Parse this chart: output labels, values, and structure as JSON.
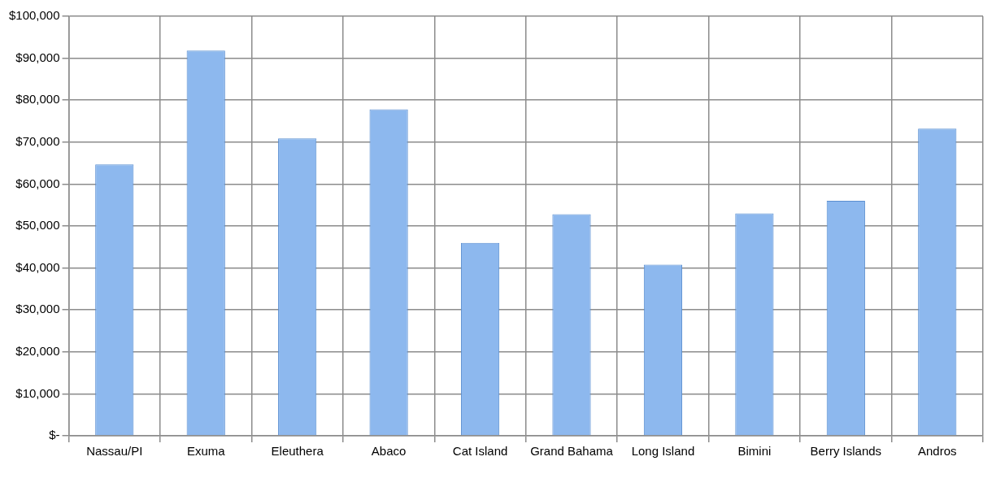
{
  "chart_data": {
    "type": "bar",
    "categories": [
      "Nassau/PI",
      "Exuma",
      "Eleuthera",
      "Abaco",
      "Cat Island",
      "Grand Bahama",
      "Long Island",
      "Bimini",
      "Berry Islands",
      "Andros"
    ],
    "values": [
      64700,
      91800,
      70900,
      77800,
      46000,
      52800,
      40800,
      53000,
      56000,
      73200
    ],
    "color": "#8db8ee",
    "ylim": [
      0,
      100000
    ],
    "yticks": [
      {
        "value": 0,
        "label": "$-"
      },
      {
        "value": 10000,
        "label": "$10,000"
      },
      {
        "value": 20000,
        "label": "$20,000"
      },
      {
        "value": 30000,
        "label": "$30,000"
      },
      {
        "value": 40000,
        "label": "$40,000"
      },
      {
        "value": 50000,
        "label": "$50,000"
      },
      {
        "value": 60000,
        "label": "$60,000"
      },
      {
        "value": 70000,
        "label": "$70,000"
      },
      {
        "value": 80000,
        "label": "$80,000"
      },
      {
        "value": 90000,
        "label": "$90,000"
      },
      {
        "value": 100000,
        "label": "$100,000"
      }
    ],
    "grid": true
  }
}
